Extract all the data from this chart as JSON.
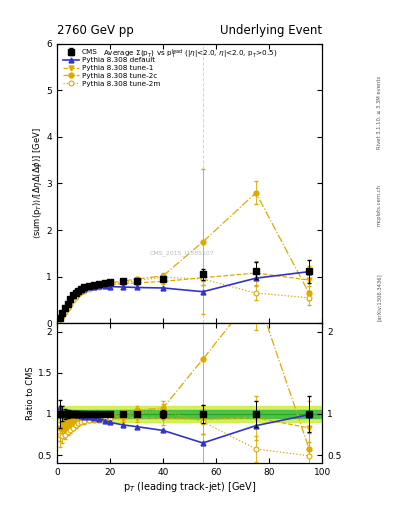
{
  "title_left": "2760 GeV pp",
  "title_right": "Underlying Event",
  "plot_title": "Average Σ(p_{T}) vs p_{T}^{lead} (|η|<2.0, η|<2.0, p_{T}>0.5)",
  "xlabel": "p_{T} (leading track-jet) [GeV]",
  "ylabel": "<sum(p_{T})>/[#Delta#eta#Delta(#Delta#phi)] [GeV]",
  "ylabel_ratio": "Ratio to CMS",
  "xlim": [
    0,
    100
  ],
  "ylim_main": [
    0.0,
    6.0
  ],
  "ylim_ratio": [
    0.4,
    2.1
  ],
  "cms_x": [
    1,
    2,
    3,
    4,
    5,
    6,
    7,
    8,
    9,
    10,
    12,
    14,
    16,
    18,
    20,
    25,
    30,
    40,
    55,
    75,
    95
  ],
  "cms_y": [
    0.12,
    0.22,
    0.32,
    0.42,
    0.52,
    0.6,
    0.65,
    0.7,
    0.74,
    0.77,
    0.8,
    0.83,
    0.85,
    0.87,
    0.88,
    0.9,
    0.91,
    0.95,
    1.05,
    1.13,
    1.12
  ],
  "cms_yerr": [
    0.02,
    0.02,
    0.02,
    0.02,
    0.02,
    0.02,
    0.02,
    0.02,
    0.02,
    0.02,
    0.02,
    0.02,
    0.02,
    0.02,
    0.02,
    0.02,
    0.02,
    0.05,
    0.12,
    0.18,
    0.25
  ],
  "default_x": [
    1,
    2,
    3,
    4,
    5,
    6,
    7,
    8,
    9,
    10,
    12,
    14,
    16,
    18,
    20,
    25,
    30,
    40,
    55,
    75,
    95
  ],
  "default_y": [
    0.13,
    0.22,
    0.32,
    0.43,
    0.53,
    0.6,
    0.65,
    0.69,
    0.72,
    0.74,
    0.77,
    0.79,
    0.8,
    0.8,
    0.79,
    0.78,
    0.77,
    0.76,
    0.68,
    0.97,
    1.11
  ],
  "tune1_x": [
    1,
    2,
    3,
    4,
    5,
    6,
    7,
    8,
    9,
    10,
    12,
    14,
    16,
    18,
    20,
    25,
    30,
    40,
    55,
    75,
    95
  ],
  "tune1_y": [
    0.1,
    0.19,
    0.28,
    0.38,
    0.47,
    0.55,
    0.6,
    0.65,
    0.69,
    0.72,
    0.76,
    0.78,
    0.8,
    0.82,
    0.83,
    0.85,
    0.87,
    0.9,
    0.98,
    1.08,
    0.93
  ],
  "tune1_yerr": [
    0.01,
    0.01,
    0.01,
    0.01,
    0.01,
    0.01,
    0.01,
    0.01,
    0.01,
    0.01,
    0.01,
    0.01,
    0.01,
    0.02,
    0.02,
    0.03,
    0.04,
    0.06,
    0.15,
    0.25,
    0.3
  ],
  "tune2c_x": [
    1,
    2,
    3,
    4,
    5,
    6,
    7,
    8,
    9,
    10,
    12,
    14,
    16,
    18,
    20,
    25,
    30,
    40,
    55,
    75,
    95
  ],
  "tune2c_y": [
    0.1,
    0.18,
    0.27,
    0.36,
    0.45,
    0.54,
    0.6,
    0.65,
    0.7,
    0.73,
    0.78,
    0.81,
    0.83,
    0.85,
    0.87,
    0.91,
    0.95,
    1.02,
    1.75,
    2.8,
    0.65
  ],
  "tune2c_yerr": [
    0.01,
    0.01,
    0.01,
    0.01,
    0.01,
    0.01,
    0.01,
    0.01,
    0.01,
    0.01,
    0.01,
    0.01,
    0.01,
    0.02,
    0.02,
    0.03,
    0.04,
    0.06,
    1.55,
    0.25,
    0.15
  ],
  "tune2m_x": [
    1,
    2,
    3,
    4,
    5,
    6,
    7,
    8,
    9,
    10,
    12,
    14,
    16,
    18,
    20,
    25,
    30,
    40,
    55,
    75,
    95
  ],
  "tune2m_y": [
    0.09,
    0.16,
    0.24,
    0.33,
    0.42,
    0.5,
    0.56,
    0.62,
    0.67,
    0.7,
    0.74,
    0.77,
    0.79,
    0.82,
    0.84,
    0.88,
    0.92,
    0.99,
    0.95,
    0.65,
    0.55
  ],
  "tune2m_yerr": [
    0.01,
    0.01,
    0.01,
    0.01,
    0.01,
    0.01,
    0.01,
    0.01,
    0.01,
    0.01,
    0.01,
    0.01,
    0.01,
    0.02,
    0.02,
    0.02,
    0.03,
    0.05,
    0.12,
    0.15,
    0.15
  ],
  "color_cms": "#000000",
  "color_default": "#3333cc",
  "color_tune1": "#ddaa00",
  "color_tune2c": "#ddaa00",
  "color_tune2m": "#ddaa00",
  "band_color_outer": "#ccee44",
  "band_color_inner": "#44bb44",
  "ref_line_color": "#22aa22",
  "watermark": "CMS_2015_I1385107",
  "right_label1": "Rivet 3.1.10, ≥ 3.3M events",
  "right_label2": "mcplots.cern.ch",
  "right_label3": "[arXiv:1306.3436]"
}
